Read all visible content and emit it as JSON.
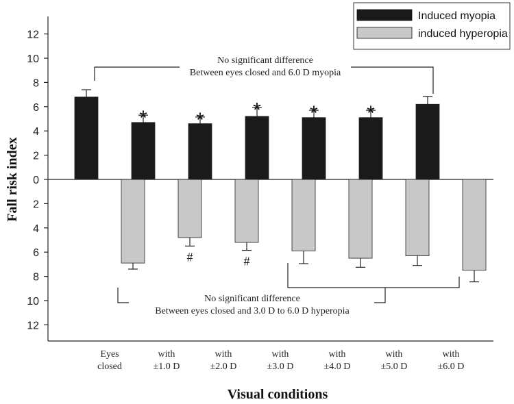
{
  "chart_data": {
    "type": "bar",
    "xlabel": "Visual conditions",
    "ylabel": "Fall risk index",
    "ylim": [
      -13.5,
      13.5
    ],
    "yticks": [
      12,
      10,
      8,
      6,
      4,
      2,
      0,
      -2,
      -4,
      -6,
      -8,
      -10,
      -12
    ],
    "ytick_labels": [
      "12",
      "10",
      "8",
      "6",
      "4",
      "2",
      "0",
      "2",
      "4",
      "6",
      "8",
      "10",
      "12"
    ],
    "categories": [
      {
        "line1": "Eyes",
        "line2": "closed"
      },
      {
        "line1": "with",
        "line2": "±1.0 D"
      },
      {
        "line1": "with",
        "line2": "±2.0 D"
      },
      {
        "line1": "with",
        "line2": "±3.0 D"
      },
      {
        "line1": "with",
        "line2": "±4.0 D"
      },
      {
        "line1": "with",
        "line2": "±5.0 D"
      },
      {
        "line1": "with",
        "line2": "±6.0 D"
      }
    ],
    "series": [
      {
        "name": "Induced myopia",
        "color": "#1a1a1a",
        "values": [
          6.8,
          4.7,
          4.6,
          5.2,
          5.1,
          5.1,
          6.2
        ],
        "errors": [
          0.6,
          0.6,
          0.55,
          0.75,
          0.6,
          0.6,
          0.65
        ],
        "markers": [
          "",
          "*",
          "*",
          "*",
          "*",
          "*",
          ""
        ]
      },
      {
        "name": "induced hyperopia",
        "color": "#c8c8c8",
        "values": [
          -6.9,
          -4.8,
          -5.2,
          -5.9,
          -6.5,
          -6.3,
          -7.5
        ],
        "errors": [
          0.5,
          0.7,
          0.65,
          1.05,
          0.75,
          0.8,
          0.95
        ],
        "markers": [
          "",
          "#",
          "#",
          "",
          "",
          "",
          ""
        ]
      }
    ],
    "legend": {
      "position": "top-right"
    },
    "annotations": [
      {
        "line1": "No significant difference",
        "line2": "Between eyes closed and 6.0 D myopia"
      },
      {
        "line1": "No significant difference",
        "line2": "Between eyes closed and 3.0 D to 6.0 D hyperopia"
      }
    ]
  }
}
